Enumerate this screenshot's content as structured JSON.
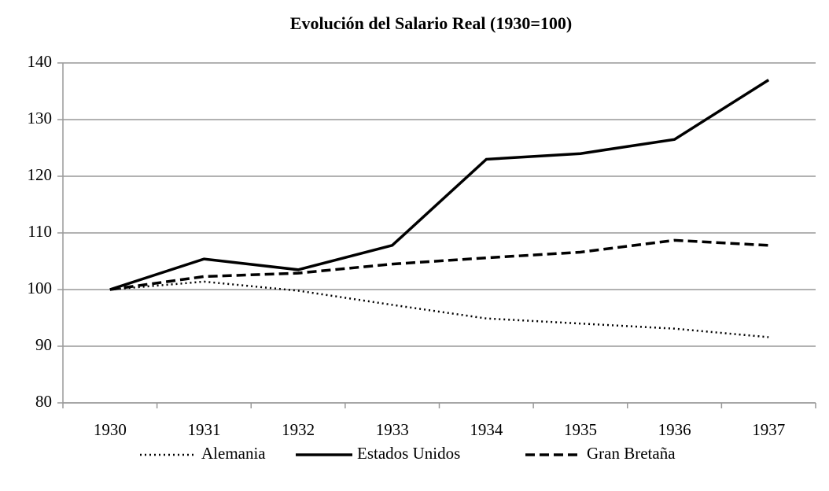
{
  "chart_data": {
    "type": "line",
    "title": "Evolución del Salario Real (1930=100)",
    "categories": [
      "1930",
      "1931",
      "1932",
      "1933",
      "1934",
      "1935",
      "1936",
      "1937"
    ],
    "series": [
      {
        "name": "Alemania",
        "color": "#000000",
        "style": "dotted",
        "values": [
          100,
          101.4,
          99.8,
          97.3,
          94.9,
          94.0,
          93.1,
          91.6
        ]
      },
      {
        "name": "Estados Unidos",
        "color": "#000000",
        "style": "solid",
        "values": [
          100,
          105.4,
          103.5,
          107.8,
          123.0,
          124.0,
          126.5,
          137.0
        ]
      },
      {
        "name": "Gran Bretaña",
        "color": "#000000",
        "style": "dashed",
        "values": [
          100,
          102.3,
          102.9,
          104.5,
          105.6,
          106.6,
          108.7,
          107.8
        ]
      }
    ],
    "ylim": [
      80,
      140
    ],
    "yticks": [
      80,
      90,
      100,
      110,
      120,
      130,
      140
    ],
    "grid": true,
    "legend": "bottom"
  }
}
